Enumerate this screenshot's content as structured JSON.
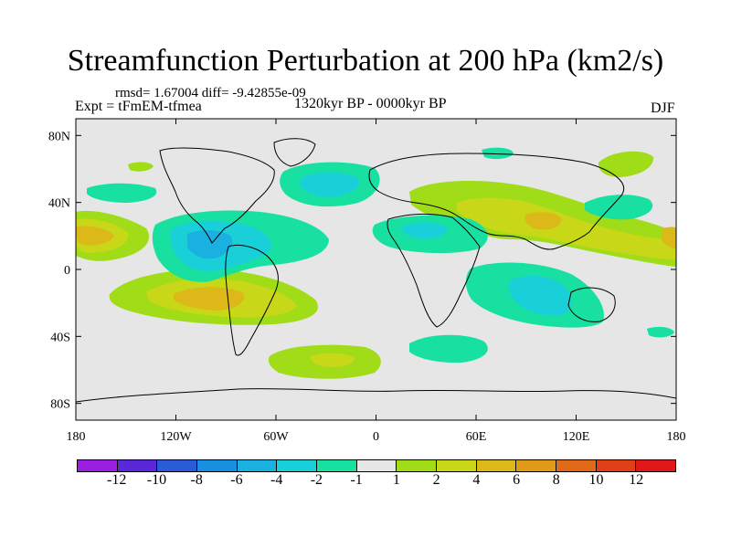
{
  "title": "Streamfunction Perturbation at 200 hPa (km2/s)",
  "stats_line": "rmsd= 1.67004  diff= -9.42855e-09",
  "expt_label": "Expt = tFmEM-tfmea",
  "period_label": "1320kyr BP - 0000kyr BP",
  "season_label": "DJF",
  "map": {
    "projection": "cylindrical equidistant",
    "lon_range": [
      -180,
      180
    ],
    "lat_range": [
      -90,
      90
    ],
    "background_color": "#e6e6e6",
    "y_ticks": [
      {
        "lat": 80,
        "label": "80N"
      },
      {
        "lat": 40,
        "label": "40N"
      },
      {
        "lat": 0,
        "label": "0"
      },
      {
        "lat": -40,
        "label": "40S"
      },
      {
        "lat": -80,
        "label": "80S"
      }
    ],
    "x_ticks": [
      {
        "lon": -180,
        "label": "180"
      },
      {
        "lon": -120,
        "label": "120W"
      },
      {
        "lon": -60,
        "label": "60W"
      },
      {
        "lon": 0,
        "label": "0"
      },
      {
        "lon": 60,
        "label": "60E"
      },
      {
        "lon": 120,
        "label": "120E"
      },
      {
        "lon": 180,
        "label": "180"
      }
    ]
  },
  "colorbar": {
    "colors": [
      "#9a1ee0",
      "#5a28d8",
      "#2a5cd8",
      "#1a8ee0",
      "#1ab0e0",
      "#1ad0d8",
      "#18e0a0",
      "#e6e6e6",
      "#a0dc18",
      "#c8d818",
      "#dcb818",
      "#e09a18",
      "#e06a18",
      "#e04018",
      "#e01818"
    ],
    "labels": [
      "-12",
      "-10",
      "-8",
      "-6",
      "-4",
      "-2",
      "-1",
      "1",
      "2",
      "4",
      "6",
      "8",
      "10",
      "12"
    ]
  }
}
